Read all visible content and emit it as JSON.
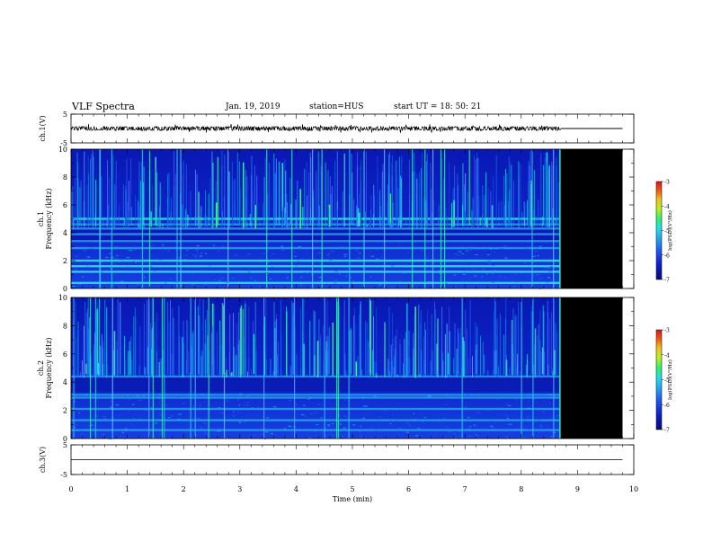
{
  "header": {
    "title": "VLF Spectra",
    "date": "Jan. 19, 2019",
    "station": "station=HUS",
    "start": "start  UT  =   18: 50: 21"
  },
  "colors": {
    "background": "#ffffff",
    "spectrogram_noise_floor": "#0b1fc8",
    "no_data": "#000000",
    "trace": "#000000"
  },
  "chart_data": [
    {
      "type": "line",
      "name": "voltage-trace-ch1",
      "ylabel": "ch.1(V)",
      "ylim": [
        -5,
        5
      ],
      "yticks": [
        "5",
        "-5"
      ],
      "xlim": [
        0,
        10
      ],
      "x": [
        0,
        8.7
      ],
      "y": [
        0,
        0
      ],
      "amplitude_approx": 0.6,
      "after_end": {
        "x": [
          8.7,
          9.8
        ],
        "y": [
          0,
          0
        ]
      }
    },
    {
      "type": "heatmap",
      "name": "spectrogram-ch1",
      "ylabel": "ch.1\nFrequency  (kHz)",
      "ylim": [
        0,
        10
      ],
      "yticks": [
        "0",
        "2",
        "4",
        "6",
        "8",
        "10"
      ],
      "xlim": [
        0,
        10
      ],
      "data_end_min": 8.7,
      "no_data_range_min": [
        8.7,
        9.8
      ],
      "colorbar": {
        "label": "log(PSD)(V²/Hz)",
        "range": [
          -7,
          -3
        ],
        "ticks": [
          "-3",
          "-4",
          "-5",
          "-6",
          "-7"
        ]
      },
      "bands_khz": [
        0.4,
        1.2,
        1.6,
        2.0,
        2.9,
        3.4,
        3.9,
        4.3,
        4.6,
        5.0
      ]
    },
    {
      "type": "heatmap",
      "name": "spectrogram-ch2",
      "ylabel": "ch.2\nFrequency  (kHz)",
      "ylim": [
        0,
        10
      ],
      "yticks": [
        "0",
        "2",
        "4",
        "6",
        "8",
        "10"
      ],
      "xlim": [
        0,
        10
      ],
      "data_end_min": 8.7,
      "no_data_range_min": [
        8.7,
        9.8
      ],
      "colorbar": {
        "label": "log(PSD)(V²/Hz)",
        "range": [
          -7,
          -3
        ],
        "ticks": [
          "-3",
          "-4",
          "-5",
          "-6",
          "-7"
        ]
      },
      "bands_khz": [
        0.6,
        1.3,
        2.1,
        2.9,
        3.1,
        4.4
      ]
    },
    {
      "type": "line",
      "name": "voltage-trace-ch3",
      "ylabel": "ch.3(V)",
      "ylim": [
        -5,
        5
      ],
      "yticks": [
        "5",
        "-5"
      ],
      "xlim": [
        0,
        10
      ],
      "x": [
        0,
        9.8
      ],
      "y": [
        0,
        0
      ]
    }
  ],
  "x_axis": {
    "label": "Time  (min)",
    "ticks": [
      "0",
      "1",
      "2",
      "3",
      "4",
      "5",
      "6",
      "7",
      "8",
      "9",
      "10"
    ]
  }
}
